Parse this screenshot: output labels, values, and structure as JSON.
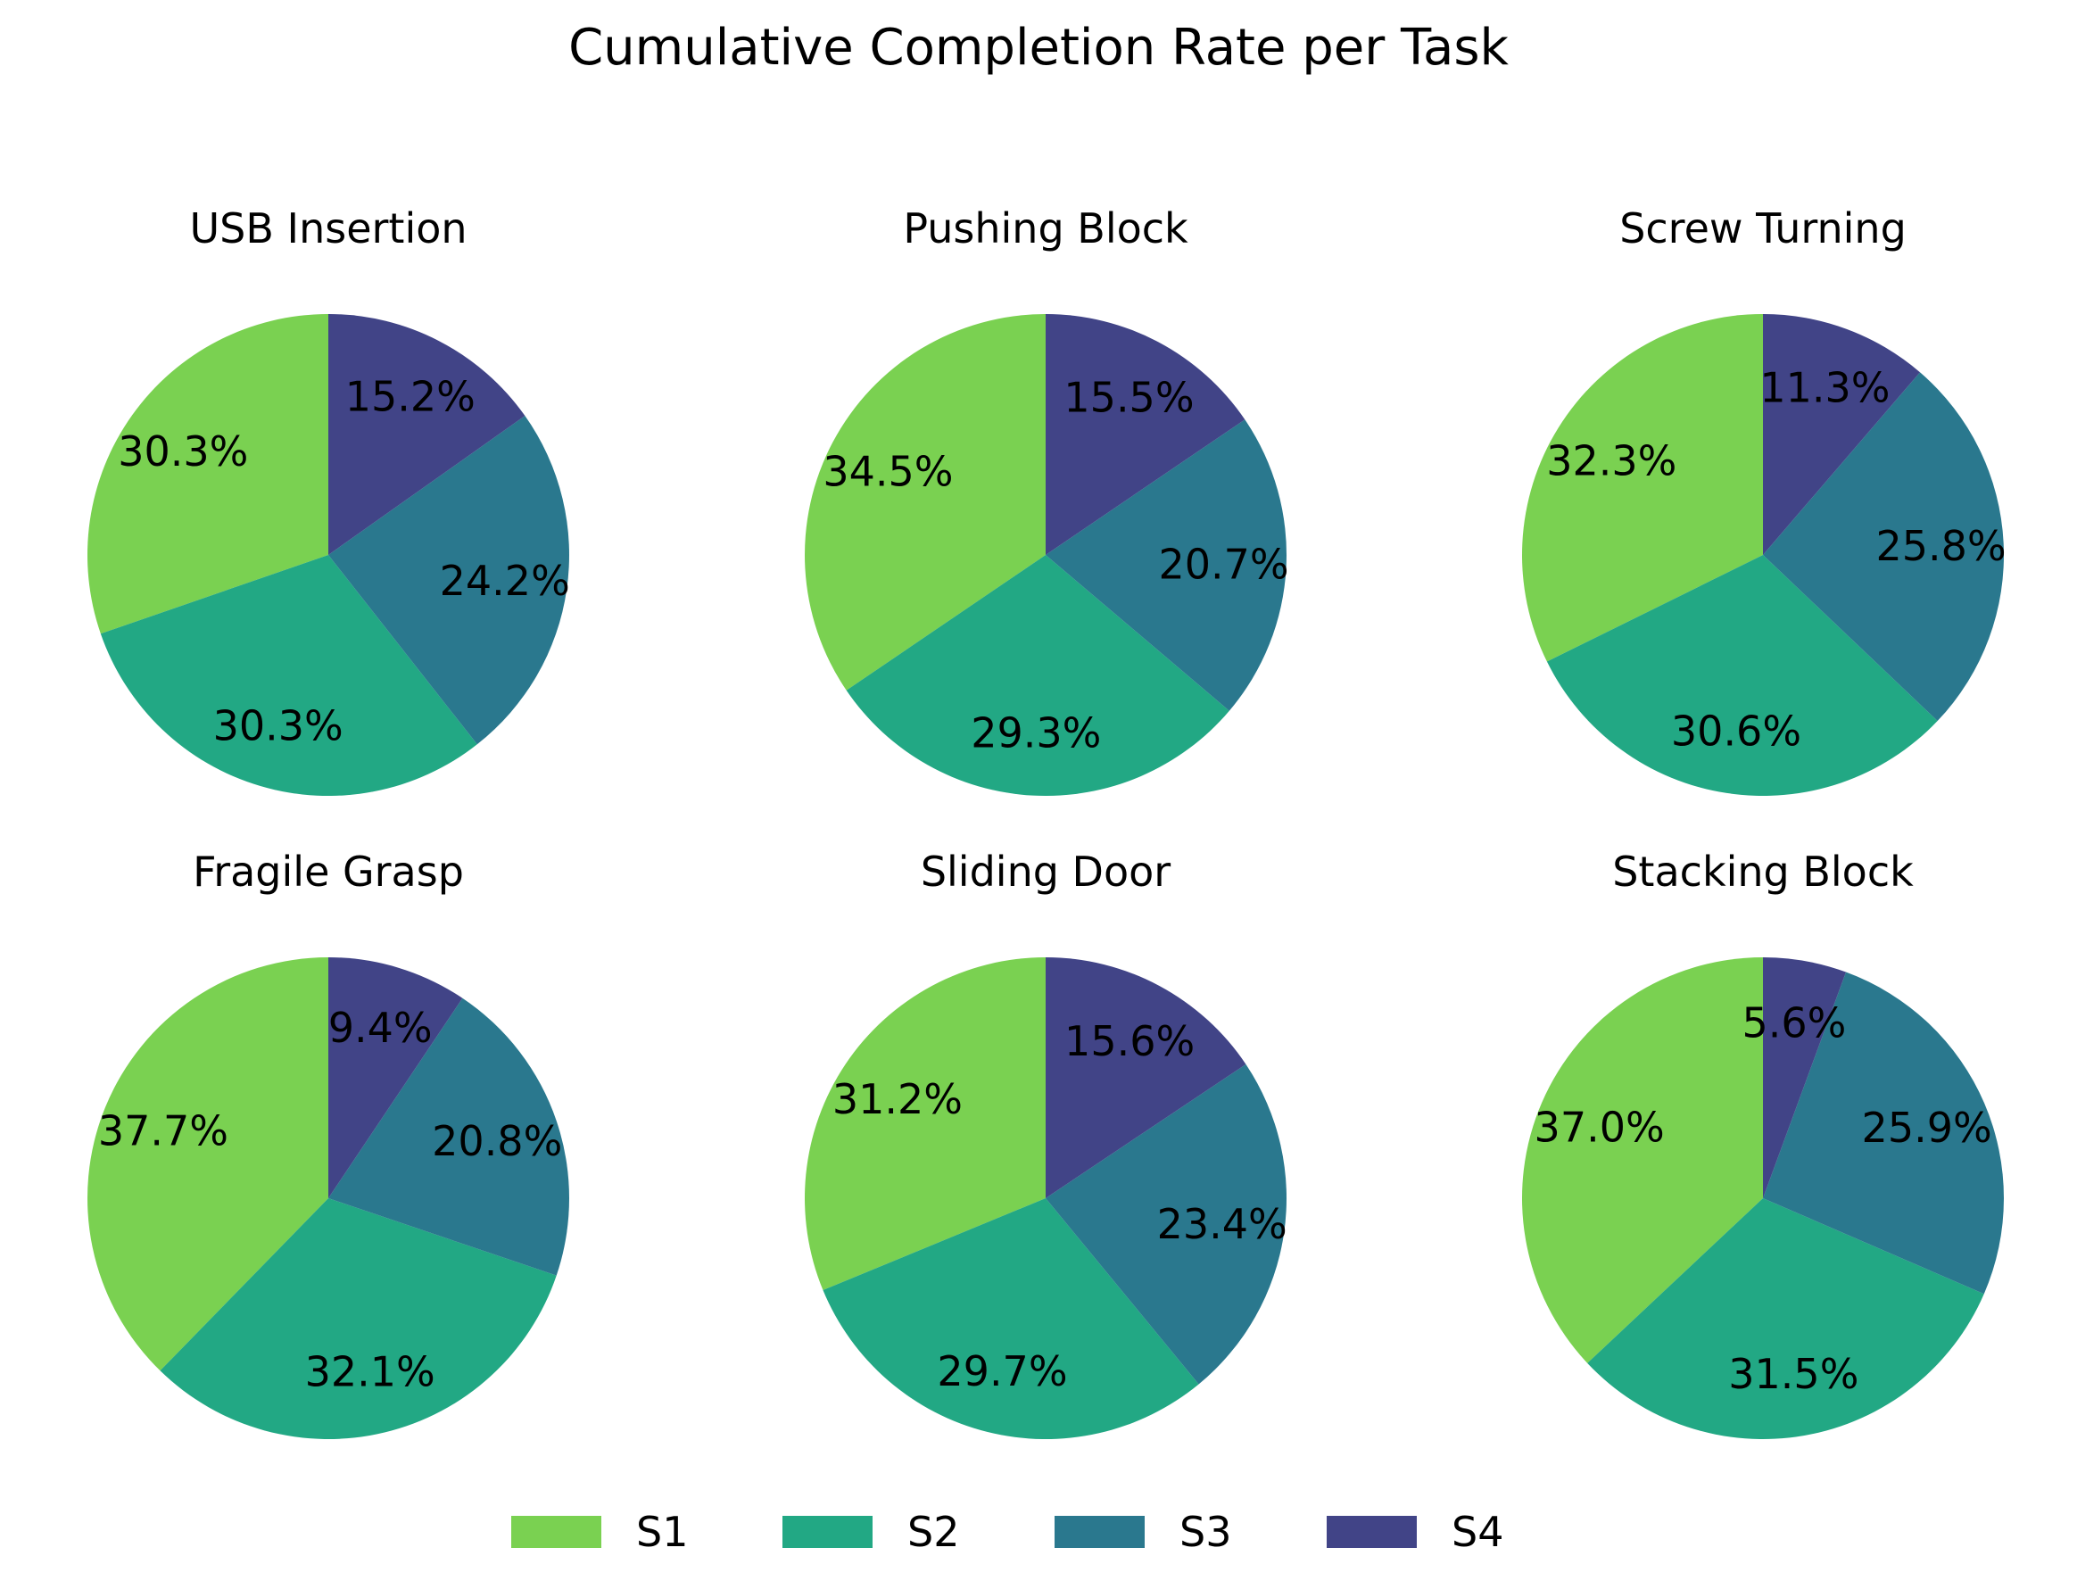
{
  "chart_data": {
    "type": "pie",
    "title": "Cumulative Completion Rate per Task",
    "legend": {
      "placement": "bottom-center",
      "entries": [
        {
          "name": "S1",
          "color": "#7ad151"
        },
        {
          "name": "S2",
          "color": "#22a884"
        },
        {
          "name": "S3",
          "color": "#2a788e"
        },
        {
          "name": "S4",
          "color": "#414487"
        }
      ]
    },
    "slice_order": "counterclockwise from top, S1 first",
    "pies": [
      {
        "title": "USB Insertion",
        "values": [
          30.3,
          30.3,
          24.2,
          15.2
        ],
        "labels": [
          "30.3%",
          "30.3%",
          "24.2%",
          "15.2%"
        ]
      },
      {
        "title": "Pushing Block",
        "values": [
          34.5,
          29.3,
          20.7,
          15.5
        ],
        "labels": [
          "34.5%",
          "29.3%",
          "20.7%",
          "15.5%"
        ]
      },
      {
        "title": "Screw Turning",
        "values": [
          32.3,
          30.6,
          25.8,
          11.3
        ],
        "labels": [
          "32.3%",
          "30.6%",
          "25.8%",
          "11.3%"
        ]
      },
      {
        "title": "Fragile Grasp",
        "values": [
          37.7,
          32.1,
          20.8,
          9.4
        ],
        "labels": [
          "37.7%",
          "32.1%",
          "20.8%",
          "9.4%"
        ]
      },
      {
        "title": "Sliding Door",
        "values": [
          31.2,
          29.7,
          23.4,
          15.6
        ],
        "labels": [
          "31.2%",
          "29.7%",
          "23.4%",
          "15.6%"
        ]
      },
      {
        "title": "Stacking Block",
        "values": [
          37.0,
          31.5,
          25.9,
          5.6
        ],
        "labels": [
          "37.0%",
          "31.5%",
          "25.9%",
          "5.6%"
        ]
      }
    ]
  }
}
